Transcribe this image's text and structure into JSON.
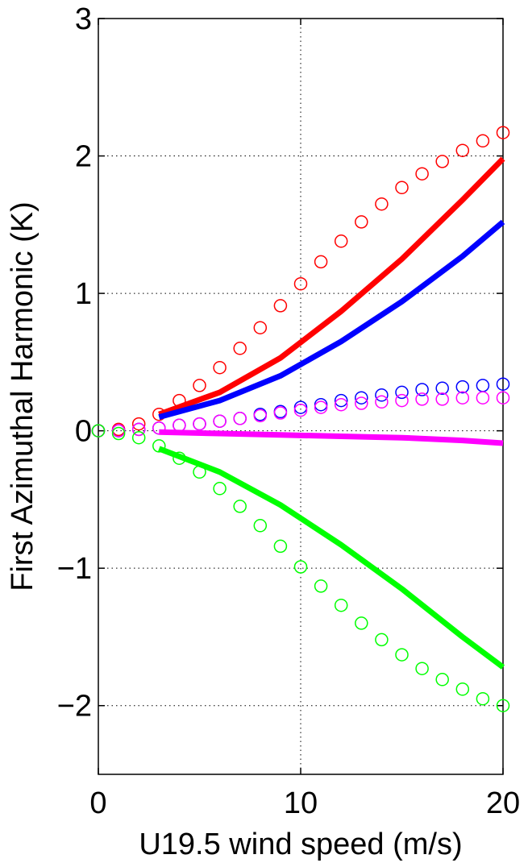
{
  "chart_data": {
    "type": "line",
    "title": "",
    "xlabel": "U19.5 wind speed (m/s)",
    "ylabel": "First Azimuthal Harmonic (K)",
    "xlim": [
      0,
      20
    ],
    "ylim": [
      -2.5,
      3
    ],
    "xticks": [
      0,
      10,
      20
    ],
    "xtick_labels": [
      "0",
      "10",
      "20"
    ],
    "yticks": [
      -2,
      -1,
      0,
      1,
      2,
      3
    ],
    "ytick_labels": [
      "−2",
      "−1",
      "0",
      "1",
      "2",
      "3"
    ],
    "grid": true,
    "legend": "none",
    "series": [
      {
        "style": "line",
        "color": "#ff0000",
        "x": [
          3,
          6,
          9,
          12,
          15,
          18,
          20
        ],
        "y": [
          0.12,
          0.28,
          0.53,
          0.87,
          1.25,
          1.68,
          1.98
        ]
      },
      {
        "style": "line",
        "color": "#0000ff",
        "x": [
          3,
          6,
          9,
          12,
          15,
          18,
          20
        ],
        "y": [
          0.1,
          0.22,
          0.4,
          0.65,
          0.94,
          1.27,
          1.52
        ]
      },
      {
        "style": "line",
        "color": "#ff00ff",
        "x": [
          3,
          6,
          9,
          12,
          15,
          18,
          20
        ],
        "y": [
          -0.01,
          -0.02,
          -0.03,
          -0.04,
          -0.05,
          -0.07,
          -0.09
        ]
      },
      {
        "style": "line",
        "color": "#00ff00",
        "x": [
          3,
          6,
          9,
          12,
          15,
          18,
          20
        ],
        "y": [
          -0.13,
          -0.3,
          -0.54,
          -0.83,
          -1.15,
          -1.5,
          -1.72
        ]
      },
      {
        "style": "markers",
        "color": "#ff0000",
        "x": [
          0,
          1,
          2,
          3,
          4,
          5,
          6,
          7,
          8,
          9,
          10,
          11,
          12,
          13,
          14,
          15,
          16,
          17,
          18,
          19,
          20
        ],
        "y": [
          0,
          0.01,
          0.05,
          0.12,
          0.22,
          0.33,
          0.46,
          0.6,
          0.75,
          0.91,
          1.07,
          1.23,
          1.38,
          1.52,
          1.65,
          1.77,
          1.87,
          1.96,
          2.04,
          2.11,
          2.17
        ]
      },
      {
        "style": "markers",
        "color": "#0000ff",
        "x": [
          0,
          1,
          2,
          3,
          4,
          5,
          6,
          7,
          8,
          9,
          10,
          11,
          12,
          13,
          14,
          15,
          16,
          17,
          18,
          19,
          20
        ],
        "y": [
          0,
          0,
          0.01,
          0.02,
          0.04,
          0.05,
          0.07,
          0.09,
          0.12,
          0.14,
          0.17,
          0.19,
          0.22,
          0.24,
          0.26,
          0.28,
          0.3,
          0.31,
          0.32,
          0.33,
          0.34
        ]
      },
      {
        "style": "markers",
        "color": "#ff00ff",
        "x": [
          0,
          1,
          2,
          3,
          4,
          5,
          6,
          7,
          8,
          9,
          10,
          11,
          12,
          13,
          14,
          15,
          16,
          17,
          18,
          19,
          20
        ],
        "y": [
          0,
          0,
          0.01,
          0.02,
          0.04,
          0.05,
          0.07,
          0.09,
          0.11,
          0.13,
          0.15,
          0.17,
          0.19,
          0.2,
          0.21,
          0.22,
          0.23,
          0.23,
          0.24,
          0.24,
          0.24
        ]
      },
      {
        "style": "markers",
        "color": "#00ff00",
        "x": [
          0,
          1,
          2,
          3,
          4,
          5,
          6,
          7,
          8,
          9,
          10,
          11,
          12,
          13,
          14,
          15,
          16,
          17,
          18,
          19,
          20
        ],
        "y": [
          0,
          -0.02,
          -0.05,
          -0.11,
          -0.2,
          -0.3,
          -0.42,
          -0.55,
          -0.69,
          -0.84,
          -0.99,
          -1.13,
          -1.27,
          -1.4,
          -1.52,
          -1.63,
          -1.73,
          -1.81,
          -1.88,
          -1.95,
          -2.0
        ]
      }
    ]
  }
}
